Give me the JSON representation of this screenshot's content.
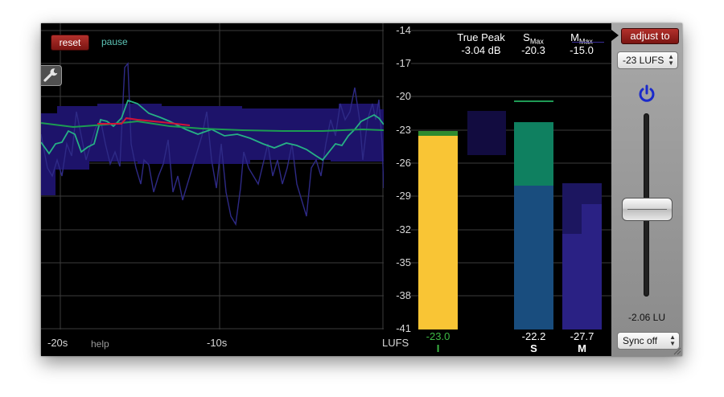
{
  "controls": {
    "reset": "reset",
    "pause": "pause",
    "help": "help"
  },
  "time_axis": {
    "t20": "-20s",
    "t10": "-10s",
    "unit": "LUFS"
  },
  "lufs_ticks": [
    "-14",
    "-17",
    "-20",
    "-23",
    "-26",
    "-29",
    "-32",
    "-35",
    "-38",
    "-41"
  ],
  "readouts": {
    "true_peak_label": "True Peak",
    "true_peak_value": "-3.04 dB",
    "smax_label": "S",
    "smax_sub": "Max",
    "smax_value": "-20.3",
    "mmax_label": "M",
    "mmax_sub": "Max",
    "mmax_value": "-15.0"
  },
  "meters": {
    "integrated": {
      "value": "-23.0",
      "label": "I"
    },
    "short_term": {
      "value": "-22.2",
      "label": "S"
    },
    "momentary": {
      "value": "-27.7",
      "label": "M"
    }
  },
  "side_panel": {
    "adjust_to": "adjust to",
    "target": "-23 LUFS",
    "gain_readout": "-2.06 LU",
    "sync": "Sync off"
  },
  "colors": {
    "integrated": "#f9c535",
    "integrated_top": "#2e8b2f",
    "short_term_top": "#0f8060",
    "short_term": "#194d7e",
    "momentary": "#2a2184",
    "momentary_dark": "#1c1660",
    "history_band": "#1d136a",
    "momentary_line": "#2c2570",
    "short_term_line": "#26b085",
    "integrated_line": "#d11438",
    "green_readout": "#3dbb45",
    "power": "#1a2acb"
  }
}
